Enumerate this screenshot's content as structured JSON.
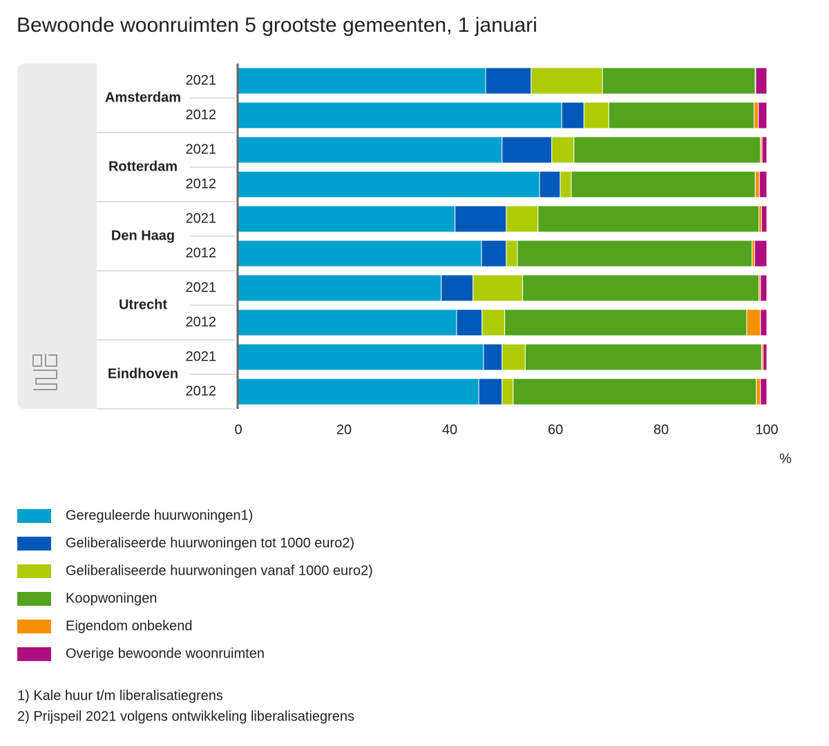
{
  "chart_data": {
    "type": "stacked-bar-horizontal",
    "title": "Bewoonde woonruimten 5 grootste gemeenten, 1 januari",
    "groups": [
      "Amsterdam",
      "Rotterdam",
      "Den Haag",
      "Utrecht",
      "Eindhoven"
    ],
    "categories": [
      "2021",
      "2012",
      "2021",
      "2012",
      "2021",
      "2012",
      "2021",
      "2012",
      "2021",
      "2012"
    ],
    "series": [
      {
        "name": "Gereguleerde huurwoningen1)",
        "color": "#00a1cd",
        "values": [
          46.8,
          61.2,
          49.9,
          57.0,
          41.0,
          46.0,
          38.4,
          41.3,
          46.4,
          45.5
        ]
      },
      {
        "name": "Geliberaliseerde huurwoningen tot 1000 euro2)",
        "color": "#0058b8",
        "values": [
          8.6,
          4.2,
          9.4,
          3.9,
          9.7,
          4.7,
          6.0,
          4.8,
          3.5,
          4.4
        ]
      },
      {
        "name": "Geliberaliseerde huurwoningen vanaf 1000 euro2)",
        "color": "#afcb05",
        "values": [
          13.5,
          4.7,
          4.2,
          2.1,
          6.0,
          2.1,
          9.4,
          4.3,
          4.4,
          2.1
        ]
      },
      {
        "name": "Koopwoningen",
        "color": "#53a31d",
        "values": [
          28.9,
          27.5,
          35.3,
          34.8,
          41.8,
          44.4,
          44.7,
          45.8,
          44.7,
          46.0
        ]
      },
      {
        "name": "Eigendom onbekend",
        "color": "#f39200",
        "values": [
          0.1,
          0.8,
          0.3,
          0.8,
          0.5,
          0.5,
          0.3,
          2.6,
          0.3,
          0.8
        ]
      },
      {
        "name": "Overige bewoonde woonruimten",
        "color": "#af0e80",
        "values": [
          2.1,
          1.6,
          0.9,
          1.4,
          1.0,
          2.3,
          1.2,
          1.2,
          0.7,
          1.2
        ]
      }
    ],
    "xlabel": "%",
    "xlim": [
      0,
      100
    ],
    "xticks": [
      0,
      20,
      40,
      60,
      80,
      100
    ],
    "notes": [
      "1) Kale huur t/m liberalisatiegrens",
      "2) Prijspeil 2021 volgens ontwikkeling liberalisatiegrens"
    ]
  }
}
